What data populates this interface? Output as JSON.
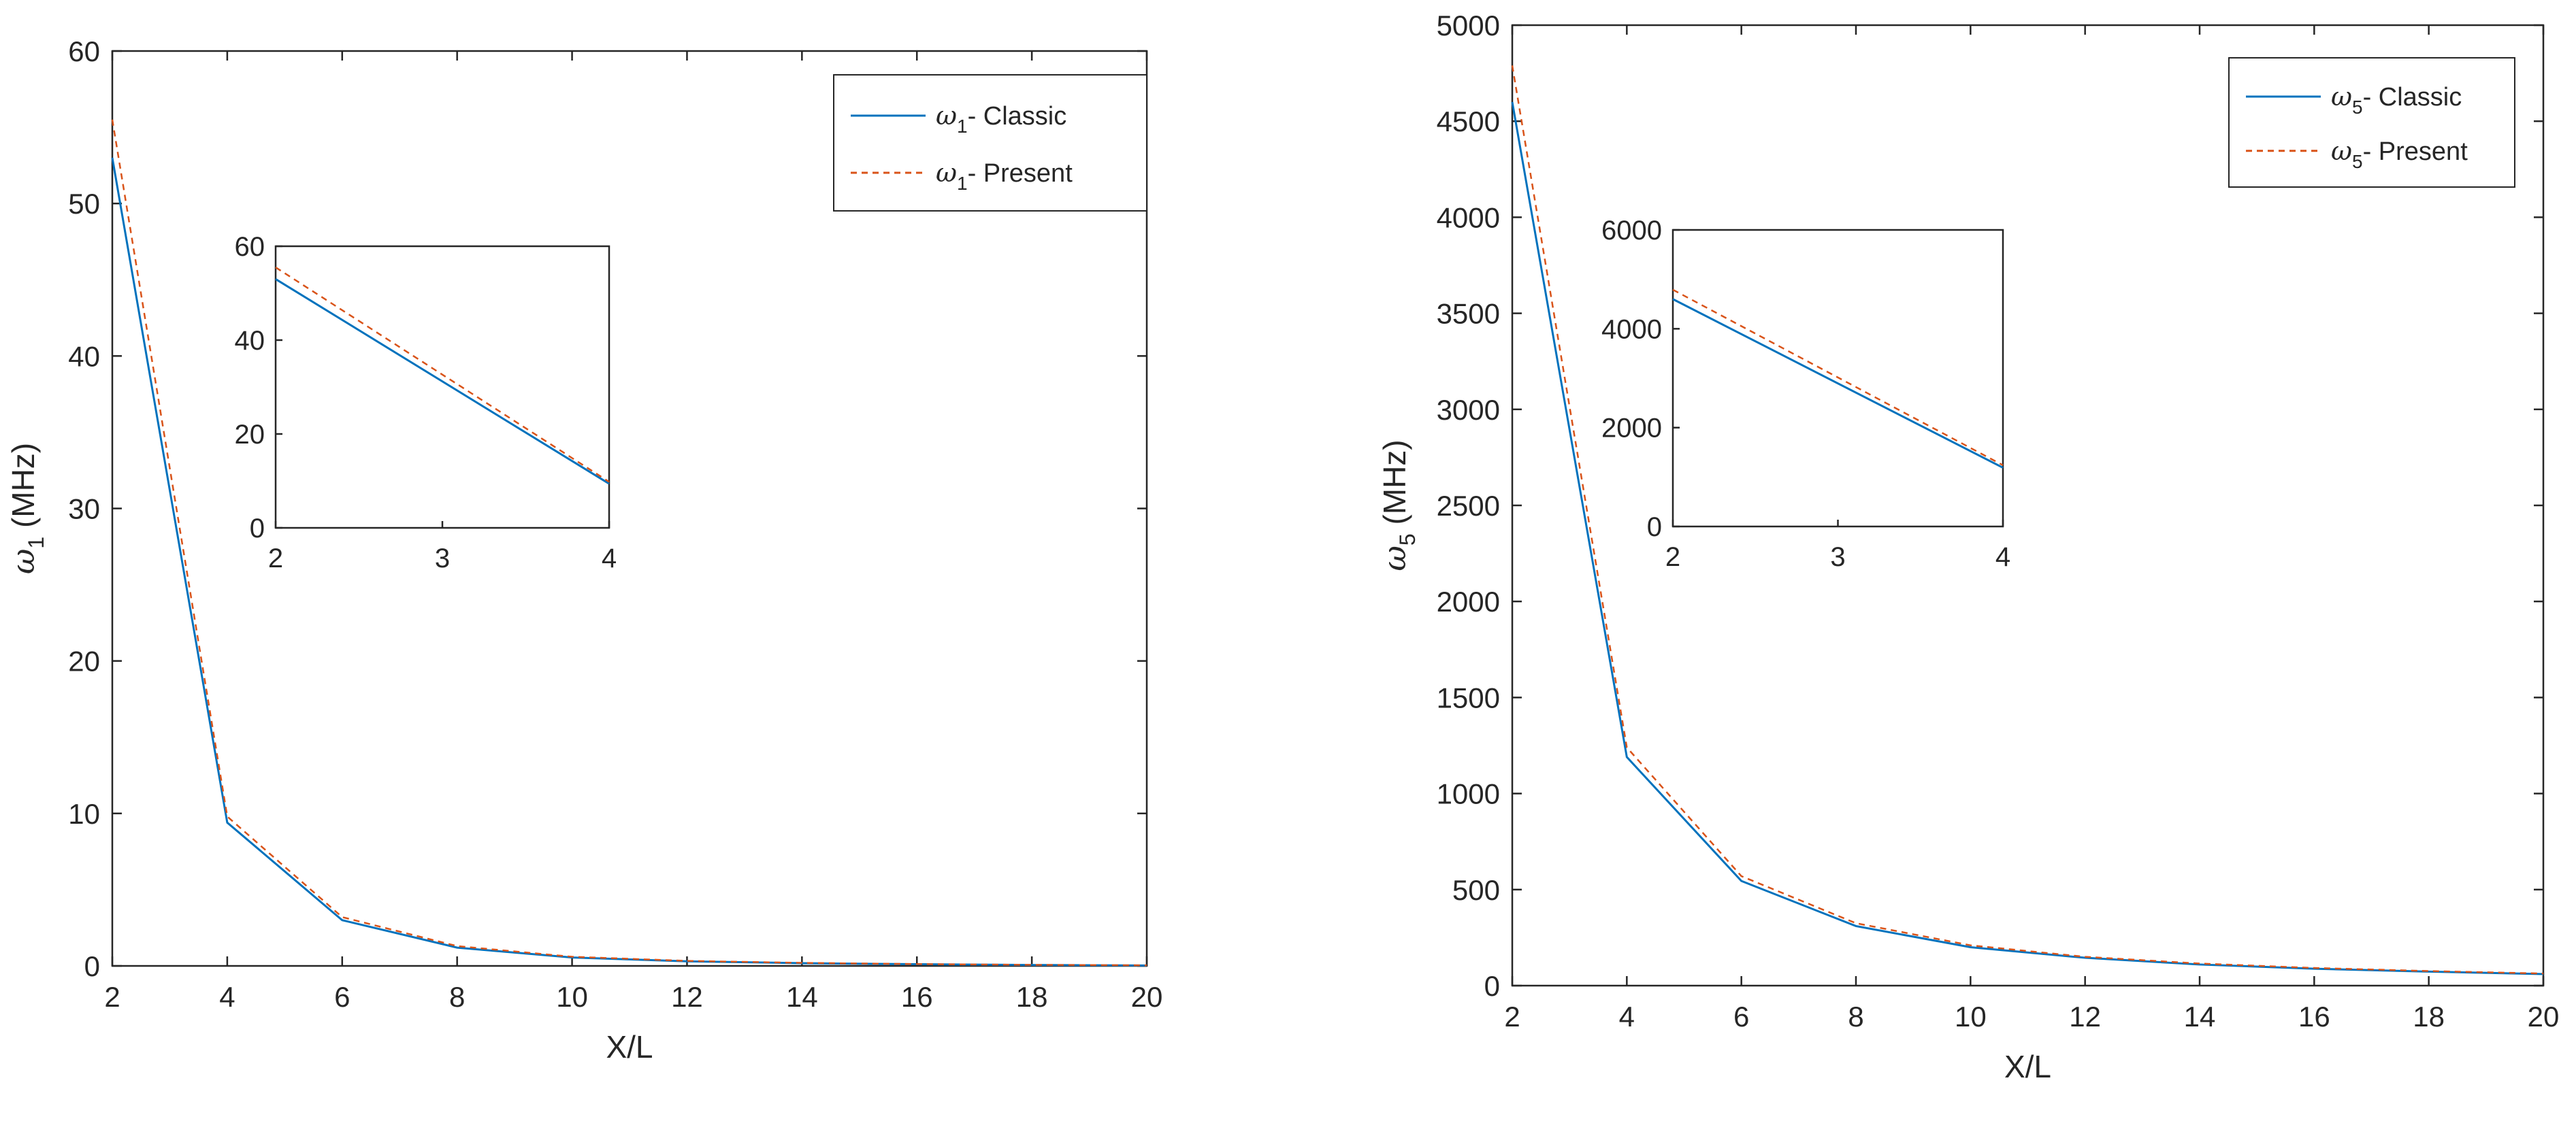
{
  "chart_data": [
    {
      "type": "line",
      "xlabel": "X/L",
      "ylabel": {
        "symbol": "ω",
        "sub": "1",
        "unit": "(MHz)"
      },
      "x": [
        2,
        4,
        6,
        8,
        10,
        12,
        14,
        16,
        18,
        20
      ],
      "xlim": [
        2,
        20
      ],
      "ylim": [
        0,
        60
      ],
      "xticks": [
        "2",
        "4",
        "6",
        "8",
        "10",
        "12",
        "14",
        "16",
        "18",
        "20"
      ],
      "yticks": [
        "0",
        "10",
        "20",
        "30",
        "40",
        "50",
        "60"
      ],
      "series": [
        {
          "name": "Classic",
          "legend": {
            "symbol": "ω",
            "sub": "1",
            "text": "- Classic"
          },
          "color": "#0072BD",
          "style": "solid",
          "values": [
            53.0,
            9.4,
            3.0,
            1.2,
            0.55,
            0.3,
            0.18,
            0.11,
            0.06,
            0.03
          ]
        },
        {
          "name": "Present",
          "legend": {
            "symbol": "ω",
            "sub": "1",
            "text": "- Present"
          },
          "color": "#D95319",
          "style": "dashed",
          "values": [
            55.5,
            9.8,
            3.2,
            1.3,
            0.6,
            0.33,
            0.2,
            0.12,
            0.07,
            0.04
          ]
        }
      ],
      "legend_position": "top-right",
      "grid": false,
      "inset": {
        "xlim": [
          2,
          4
        ],
        "ylim": [
          0,
          60
        ],
        "xticks": [
          "2",
          "3",
          "4"
        ],
        "yticks": [
          "0",
          "20",
          "40",
          "60"
        ],
        "x": [
          2,
          4
        ],
        "series": [
          {
            "name": "Classic",
            "values": [
              53.0,
              9.4
            ]
          },
          {
            "name": "Present",
            "values": [
              55.5,
              9.8
            ]
          }
        ]
      }
    },
    {
      "type": "line",
      "xlabel": "X/L",
      "ylabel": {
        "symbol": "ω",
        "sub": "5",
        "unit": "(MHz)"
      },
      "x": [
        2,
        4,
        6,
        8,
        10,
        12,
        14,
        16,
        18,
        20
      ],
      "xlim": [
        2,
        20
      ],
      "ylim": [
        0,
        5000
      ],
      "xticks": [
        "2",
        "4",
        "6",
        "8",
        "10",
        "12",
        "14",
        "16",
        "18",
        "20"
      ],
      "yticks": [
        "0",
        "500",
        "1000",
        "1500",
        "2000",
        "2500",
        "3000",
        "3500",
        "4000",
        "4500",
        "5000"
      ],
      "series": [
        {
          "name": "Classic",
          "legend": {
            "symbol": "ω",
            "sub": "5",
            "text": "- Classic"
          },
          "color": "#0072BD",
          "style": "solid",
          "values": [
            4600,
            1190,
            545,
            310,
            200,
            145,
            110,
            88,
            73,
            60
          ]
        },
        {
          "name": "Present",
          "legend": {
            "symbol": "ω",
            "sub": "5",
            "text": "- Present"
          },
          "color": "#D95319",
          "style": "dashed",
          "values": [
            4790,
            1240,
            570,
            325,
            210,
            150,
            115,
            92,
            76,
            63
          ]
        }
      ],
      "legend_position": "top-right",
      "grid": false,
      "inset": {
        "xlim": [
          2,
          4
        ],
        "ylim": [
          0,
          6000
        ],
        "xticks": [
          "2",
          "3",
          "4"
        ],
        "yticks": [
          "0",
          "2000",
          "4000",
          "6000"
        ],
        "x": [
          2,
          4
        ],
        "series": [
          {
            "name": "Classic",
            "values": [
              4600,
              1190
            ]
          },
          {
            "name": "Present",
            "values": [
              4790,
              1240
            ]
          }
        ]
      }
    }
  ]
}
